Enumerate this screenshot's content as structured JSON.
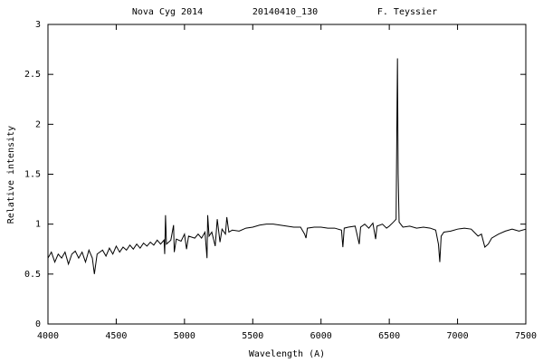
{
  "chart_data": {
    "type": "line",
    "title": [
      "Nova Cyg 2014",
      "20140410_130",
      "F. Teyssier"
    ],
    "xlabel": "Wavelength (A)",
    "ylabel": "Relative intensity",
    "xlim": [
      4000,
      7500
    ],
    "xticks": [
      4000,
      4500,
      5000,
      5500,
      6000,
      6500,
      7000,
      7500
    ],
    "ylim": [
      0,
      3
    ],
    "yticks": [
      0,
      0.5,
      1,
      1.5,
      2,
      2.5,
      3
    ],
    "color": "#000000",
    "grid": false,
    "x": [
      4000,
      4025,
      4050,
      4075,
      4100,
      4125,
      4150,
      4175,
      4200,
      4225,
      4250,
      4275,
      4300,
      4325,
      4340,
      4360,
      4400,
      4425,
      4450,
      4475,
      4500,
      4525,
      4550,
      4575,
      4600,
      4625,
      4650,
      4675,
      4700,
      4725,
      4750,
      4775,
      4800,
      4825,
      4850,
      4855,
      4861,
      4868,
      4900,
      4920,
      4925,
      4940,
      4975,
      5000,
      5015,
      5030,
      5075,
      5100,
      5125,
      5150,
      5165,
      5170,
      5180,
      5200,
      5225,
      5240,
      5260,
      5275,
      5300,
      5310,
      5325,
      5350,
      5400,
      5450,
      5500,
      5550,
      5600,
      5650,
      5700,
      5750,
      5800,
      5850,
      5880,
      5890,
      5900,
      5950,
      6000,
      6050,
      6100,
      6150,
      6160,
      6170,
      6200,
      6250,
      6280,
      6290,
      6320,
      6350,
      6380,
      6400,
      6410,
      6450,
      6480,
      6500,
      6530,
      6550,
      6556,
      6560,
      6565,
      6572,
      6600,
      6650,
      6700,
      6750,
      6800,
      6840,
      6860,
      6870,
      6880,
      6900,
      6950,
      7000,
      7050,
      7100,
      7150,
      7175,
      7200,
      7225,
      7250,
      7300,
      7350,
      7400,
      7450,
      7500
    ],
    "values": [
      0.66,
      0.72,
      0.62,
      0.7,
      0.66,
      0.72,
      0.6,
      0.7,
      0.73,
      0.66,
      0.72,
      0.62,
      0.74,
      0.66,
      0.5,
      0.7,
      0.74,
      0.68,
      0.76,
      0.7,
      0.78,
      0.72,
      0.77,
      0.74,
      0.79,
      0.75,
      0.8,
      0.76,
      0.81,
      0.78,
      0.82,
      0.79,
      0.84,
      0.8,
      0.84,
      0.7,
      1.09,
      0.8,
      0.84,
      0.99,
      0.72,
      0.85,
      0.83,
      0.9,
      0.75,
      0.88,
      0.86,
      0.9,
      0.86,
      0.92,
      0.66,
      1.09,
      0.88,
      0.92,
      0.78,
      1.05,
      0.82,
      0.95,
      0.9,
      1.07,
      0.92,
      0.94,
      0.93,
      0.96,
      0.97,
      0.99,
      1.0,
      1.0,
      0.99,
      0.98,
      0.97,
      0.97,
      0.9,
      0.86,
      0.96,
      0.97,
      0.97,
      0.96,
      0.96,
      0.94,
      0.77,
      0.96,
      0.97,
      0.98,
      0.8,
      0.97,
      1.0,
      0.96,
      1.01,
      0.85,
      0.98,
      1.0,
      0.96,
      0.98,
      1.02,
      1.05,
      2.05,
      2.66,
      1.5,
      1.02,
      0.97,
      0.98,
      0.96,
      0.97,
      0.96,
      0.94,
      0.8,
      0.62,
      0.88,
      0.92,
      0.93,
      0.95,
      0.96,
      0.95,
      0.88,
      0.9,
      0.77,
      0.8,
      0.86,
      0.9,
      0.93,
      0.95,
      0.93,
      0.95
    ]
  }
}
